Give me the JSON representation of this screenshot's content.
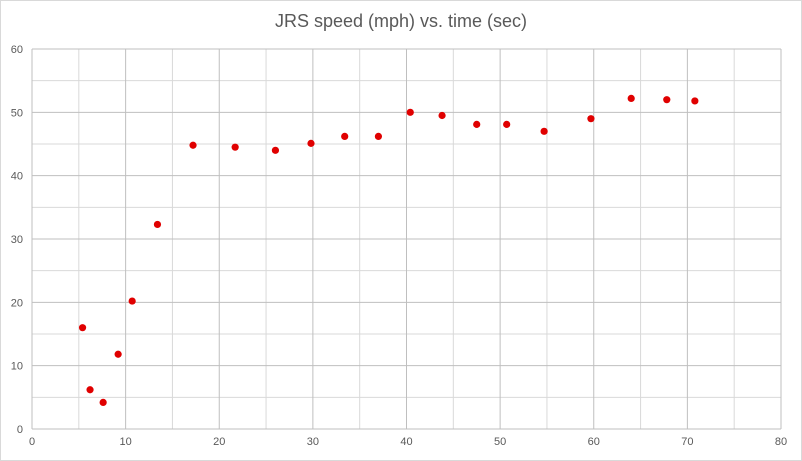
{
  "chart_data": {
    "type": "scatter",
    "title": "JRS speed (mph) vs. time (sec)",
    "xlabel": "",
    "ylabel": "",
    "xlim": [
      0,
      80
    ],
    "ylim": [
      0,
      60
    ],
    "x_major_ticks": [
      0,
      10,
      20,
      30,
      40,
      50,
      60,
      70,
      80
    ],
    "y_major_ticks": [
      0,
      10,
      20,
      30,
      40,
      50,
      60
    ],
    "x_minor_step": 5,
    "y_minor_step": 5,
    "grid": true,
    "legend": "none",
    "marker_color": "#e00000",
    "gridline_color": "#d9d9d9",
    "points": [
      {
        "x": 5.4,
        "y": 16.0
      },
      {
        "x": 6.2,
        "y": 6.2
      },
      {
        "x": 7.6,
        "y": 4.2
      },
      {
        "x": 9.2,
        "y": 11.8
      },
      {
        "x": 10.7,
        "y": 20.2
      },
      {
        "x": 13.4,
        "y": 32.3
      },
      {
        "x": 17.2,
        "y": 44.8
      },
      {
        "x": 21.7,
        "y": 44.5
      },
      {
        "x": 26.0,
        "y": 44.0
      },
      {
        "x": 29.8,
        "y": 45.1
      },
      {
        "x": 33.4,
        "y": 46.2
      },
      {
        "x": 37.0,
        "y": 46.2
      },
      {
        "x": 40.4,
        "y": 50.0
      },
      {
        "x": 43.8,
        "y": 49.5
      },
      {
        "x": 47.5,
        "y": 48.1
      },
      {
        "x": 50.7,
        "y": 48.1
      },
      {
        "x": 54.7,
        "y": 47.0
      },
      {
        "x": 59.7,
        "y": 49.0
      },
      {
        "x": 64.0,
        "y": 52.2
      },
      {
        "x": 67.8,
        "y": 52.0
      },
      {
        "x": 70.8,
        "y": 51.8
      }
    ]
  }
}
